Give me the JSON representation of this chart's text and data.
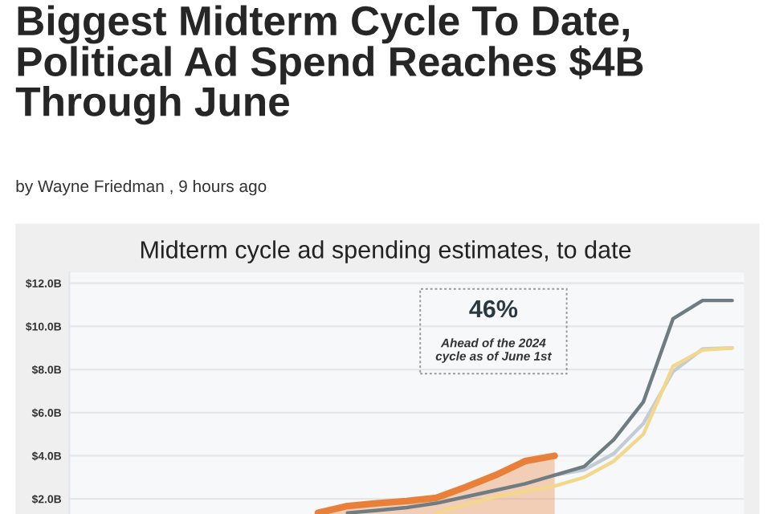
{
  "chart_data": {
    "type": "line",
    "title": "Midterm cycle ad spending estimates, to date",
    "annotations": [
      "Biggest Midterm Cycle To Date, Political Ad Spend Reaches $4B Through June",
      "by Wayne Friedman , 9 hours ago",
      "46%",
      "Ahead of the 2024\ncycle as of June 1st"
    ],
    "categories": [
      null,
      null,
      null,
      null,
      null,
      null,
      null,
      null,
      null,
      null,
      null,
      null,
      null,
      null,
      null,
      null,
      null,
      null,
      null,
      null,
      null,
      null,
      null
    ],
    "series": [
      {
        "type": "area",
        "color": "#e8803a",
        "values": [
          null,
          null,
          null,
          null,
          null,
          null,
          null,
          null,
          1.35,
          1.67,
          1.8,
          1.9,
          2.05,
          2.55,
          3.1,
          3.75,
          4.0,
          null,
          null,
          null,
          null,
          null,
          null
        ]
      },
      {
        "color": "#c3ccd4",
        "values": [
          null,
          null,
          null,
          null,
          null,
          null,
          null,
          null,
          null,
          null,
          null,
          null,
          null,
          null,
          null,
          null,
          3.1,
          3.35,
          4.1,
          5.5,
          7.9,
          8.95,
          9.0
        ]
      },
      {
        "color": "#f3d78c",
        "values": [
          null,
          null,
          null,
          null,
          null,
          null,
          null,
          null,
          null,
          null,
          null,
          null,
          1.35,
          1.73,
          2.1,
          2.35,
          2.6,
          3.0,
          3.75,
          5.0,
          8.15,
          8.9,
          9.0
        ]
      },
      {
        "color": "#6f7c82",
        "values": [
          null,
          null,
          null,
          null,
          null,
          null,
          null,
          null,
          null,
          1.35,
          1.47,
          1.6,
          1.8,
          2.1,
          2.4,
          2.7,
          3.1,
          3.5,
          4.75,
          6.5,
          10.35,
          11.2,
          11.2
        ]
      }
    ],
    "ylim": [
      1.3,
      12.5
    ],
    "yticks": [
      {
        "value": 2,
        "label": "$2.0B"
      },
      {
        "value": 4,
        "label": "$4.0B"
      },
      {
        "value": 6,
        "label": "$6.0B"
      },
      {
        "value": 8,
        "label": "$8.0B"
      },
      {
        "value": 10,
        "label": "$10.0B"
      },
      {
        "value": 12,
        "label": "$12.0B"
      }
    ],
    "grid": "y",
    "tick_labels": "y"
  }
}
